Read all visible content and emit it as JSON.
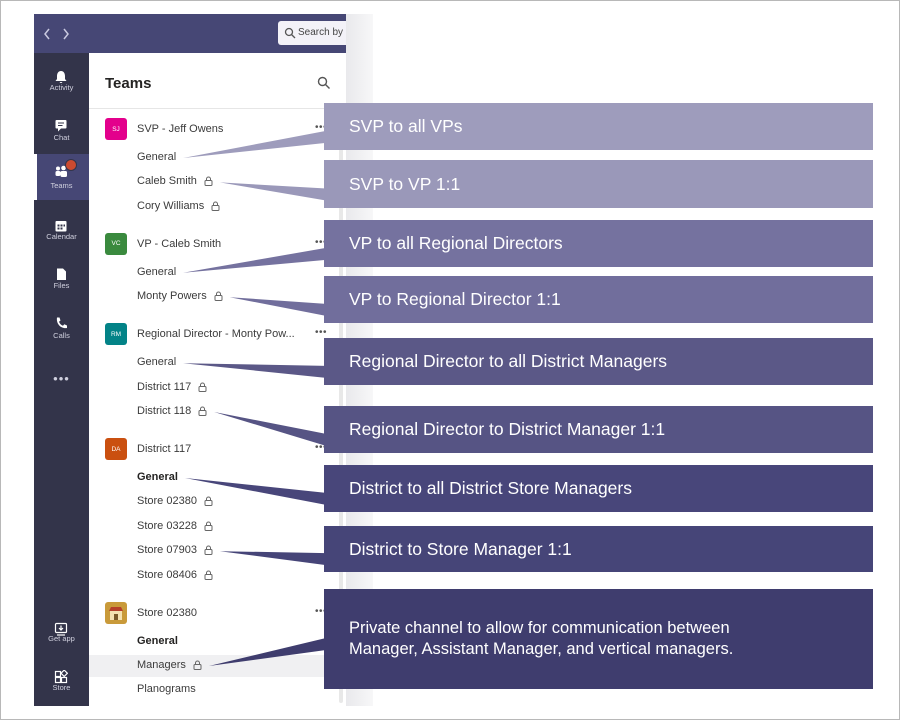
{
  "top_bar": {
    "search_placeholder": "Search by k"
  },
  "rail": [
    {
      "label": "Activity"
    },
    {
      "label": "Chat"
    },
    {
      "label": "Teams",
      "selected": true
    },
    {
      "label": "Calendar"
    },
    {
      "label": "Files"
    },
    {
      "label": "Calls"
    },
    {
      "label": "Get app"
    },
    {
      "label": "Store"
    }
  ],
  "panel": {
    "title": "Teams",
    "teams": [
      {
        "name": "SVP - Jeff Owens",
        "initials": "SJ",
        "color": "#e3008c",
        "channels": [
          {
            "name": "General"
          },
          {
            "name": "Caleb Smith",
            "locked": true
          },
          {
            "name": "Cory Williams",
            "locked": true
          }
        ]
      },
      {
        "name": "VP - Caleb Smith",
        "initials": "VC",
        "color": "#3a8a3e",
        "channels": [
          {
            "name": "General"
          },
          {
            "name": "Monty Powers",
            "locked": true
          }
        ]
      },
      {
        "name": "Regional Director - Monty Pow...",
        "initials": "RM",
        "color": "#038387",
        "channels": [
          {
            "name": "General"
          },
          {
            "name": "District 117",
            "locked": true
          },
          {
            "name": "District 118",
            "locked": true
          }
        ]
      },
      {
        "name": "District 117",
        "initials": "DA",
        "color": "#ca5010",
        "channels": [
          {
            "name": "General",
            "bold": true
          },
          {
            "name": "Store 02380",
            "locked": true
          },
          {
            "name": "Store 03228",
            "locked": true
          },
          {
            "name": "Store 07903",
            "locked": true
          },
          {
            "name": "Store 08406",
            "locked": true
          }
        ]
      },
      {
        "name": "Store 02380",
        "color": "#c99a3a",
        "channels": [
          {
            "name": "General",
            "bold": true
          },
          {
            "name": "Managers",
            "locked": true,
            "selected": true
          },
          {
            "name": "Planograms"
          }
        ]
      }
    ]
  },
  "callouts": [
    {
      "text": "SVP to all VPs",
      "color": "#9e9cbc"
    },
    {
      "text": "SVP to VP 1:1",
      "color": "#9a98b9"
    },
    {
      "text": "VP to all Regional Directors",
      "color": "#75729f"
    },
    {
      "text": "VP to Regional Director 1:1",
      "color": "#716e9c"
    },
    {
      "text": "Regional Director to all District Managers",
      "color": "#5b5887"
    },
    {
      "text": "Regional Director to District Manager 1:1",
      "color": "#565484"
    },
    {
      "text": "District to all District Store Managers",
      "color": "#48467a"
    },
    {
      "text": "District to Store Manager 1:1",
      "color": "#464578"
    },
    {
      "lines": [
        "Private channel to allow for communication between",
        "Manager, Assistant Manager, and vertical managers."
      ],
      "color": "#3f3d6e"
    }
  ]
}
